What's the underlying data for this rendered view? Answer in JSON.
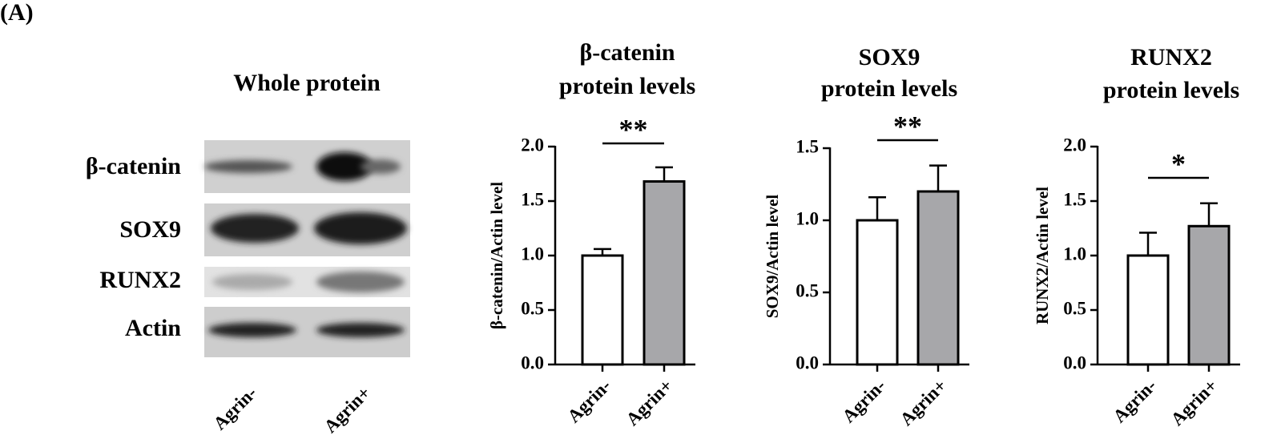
{
  "panel_label": "(A)",
  "blot": {
    "title": "Whole protein",
    "bands": [
      "β-catenin",
      "SOX9",
      "RUNX2",
      "Actin"
    ],
    "lanes": [
      "Agrin-",
      "Agrin+"
    ]
  },
  "chart_data": [
    {
      "type": "bar",
      "title": [
        "β-catenin",
        "protein levels"
      ],
      "y_label": "β-catenin/Actin level",
      "categories": [
        "Agrin-",
        "Agrin+"
      ],
      "values": [
        1.0,
        1.68
      ],
      "errors": [
        0.06,
        0.13
      ],
      "colors": [
        "#ffffff",
        "#a7a7aa"
      ],
      "ylim": [
        0,
        2
      ],
      "yticks": [
        {
          "value": 0,
          "label": "0.0"
        },
        0.5,
        {
          "value": 1,
          "label": "1.0"
        },
        1.5,
        {
          "value": 2,
          "label": "2.0"
        }
      ],
      "significance": "**"
    },
    {
      "type": "bar",
      "title": [
        "SOX9",
        "protein levels"
      ],
      "y_label": "SOX9/Actin level",
      "categories": [
        "Agrin-",
        "Agrin+"
      ],
      "values": [
        1.0,
        1.2
      ],
      "errors": [
        0.16,
        0.18
      ],
      "colors": [
        "#ffffff",
        "#a7a7aa"
      ],
      "ylim": [
        0,
        1.5
      ],
      "yticks": [
        {
          "value": 0,
          "label": "0.0"
        },
        0.5,
        {
          "value": 1,
          "label": "1.0"
        },
        1.5
      ],
      "significance": "**"
    },
    {
      "type": "bar",
      "title": [
        "RUNX2",
        "protein levels"
      ],
      "y_label": "RUNX2/Actin level",
      "categories": [
        "Agrin-",
        "Agrin+"
      ],
      "values": [
        1.0,
        1.27
      ],
      "errors": [
        0.21,
        0.21
      ],
      "colors": [
        "#ffffff",
        "#a7a7aa"
      ],
      "ylim": [
        0,
        2
      ],
      "yticks": [
        {
          "value": 0,
          "label": "0.0"
        },
        0.5,
        {
          "value": 1,
          "label": "1.0"
        },
        1.5,
        {
          "value": 2,
          "label": "2.0"
        }
      ],
      "significance": "*"
    }
  ]
}
